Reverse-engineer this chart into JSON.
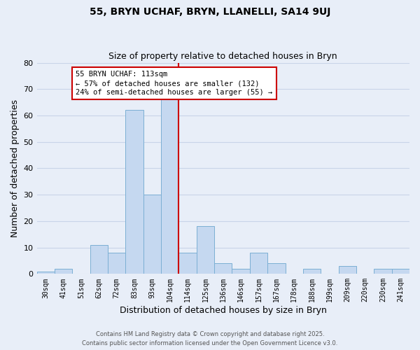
{
  "title": "55, BRYN UCHAF, BRYN, LLANELLI, SA14 9UJ",
  "subtitle": "Size of property relative to detached houses in Bryn",
  "xlabel": "Distribution of detached houses by size in Bryn",
  "ylabel": "Number of detached properties",
  "bin_labels": [
    "30sqm",
    "41sqm",
    "51sqm",
    "62sqm",
    "72sqm",
    "83sqm",
    "93sqm",
    "104sqm",
    "114sqm",
    "125sqm",
    "136sqm",
    "146sqm",
    "157sqm",
    "167sqm",
    "178sqm",
    "188sqm",
    "199sqm",
    "209sqm",
    "220sqm",
    "230sqm",
    "241sqm"
  ],
  "bar_heights": [
    1,
    2,
    0,
    11,
    8,
    62,
    30,
    66,
    8,
    18,
    4,
    2,
    8,
    4,
    0,
    2,
    0,
    3,
    0,
    2,
    2
  ],
  "bar_color": "#c5d8f0",
  "bar_edge_color": "#7bafd4",
  "marker_line_color": "#cc0000",
  "annotation_line1": "55 BRYN UCHAF: 113sqm",
  "annotation_line2": "← 57% of detached houses are smaller (132)",
  "annotation_line3": "24% of semi-detached houses are larger (55) →",
  "annotation_box_color": "#ffffff",
  "annotation_box_edge": "#cc0000",
  "ylim": [
    0,
    80
  ],
  "yticks": [
    0,
    10,
    20,
    30,
    40,
    50,
    60,
    70,
    80
  ],
  "grid_color": "#c8d4e8",
  "bg_color": "#e8eef8",
  "footer_line1": "Contains HM Land Registry data © Crown copyright and database right 2025.",
  "footer_line2": "Contains public sector information licensed under the Open Government Licence v3.0."
}
